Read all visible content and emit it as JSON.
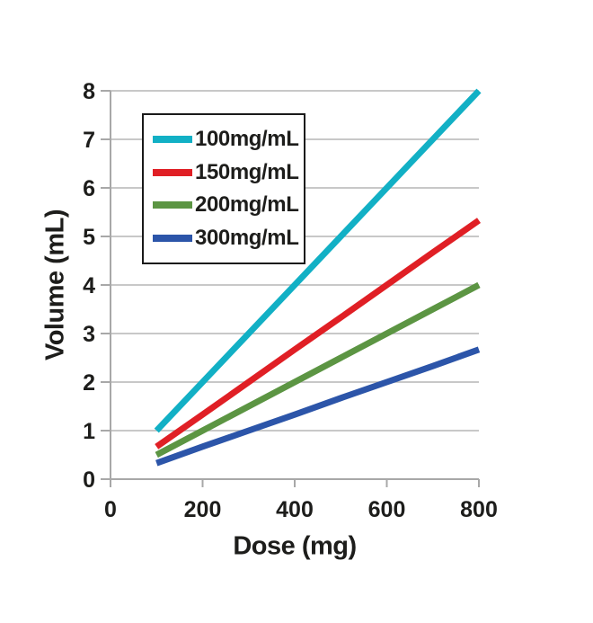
{
  "chart_data": {
    "type": "line",
    "title": "",
    "xlabel": "Dose (mg)",
    "ylabel": "Volume (mL)",
    "x": [
      100,
      200,
      300,
      400,
      500,
      600,
      700,
      800
    ],
    "xlim": [
      0,
      800
    ],
    "ylim": [
      0,
      8
    ],
    "x_ticks": [
      0,
      200,
      400,
      600,
      800
    ],
    "y_ticks": [
      0,
      1,
      2,
      3,
      4,
      5,
      6,
      7,
      8
    ],
    "grid": "horizontal",
    "legend_position": "upper-left-inside",
    "series": [
      {
        "name": "100mg/mL",
        "color": "#12b0c5",
        "values": [
          1.0,
          2.0,
          3.0,
          4.0,
          5.0,
          6.0,
          7.0,
          8.0
        ]
      },
      {
        "name": "150mg/mL",
        "color": "#e01f25",
        "values": [
          0.67,
          1.33,
          2.0,
          2.67,
          3.33,
          4.0,
          4.67,
          5.33
        ]
      },
      {
        "name": "200mg/mL",
        "color": "#5c9543",
        "values": [
          0.5,
          1.0,
          1.5,
          2.0,
          2.5,
          3.0,
          3.5,
          4.0
        ]
      },
      {
        "name": "300mg/mL",
        "color": "#2c55a9",
        "values": [
          0.33,
          0.67,
          1.0,
          1.33,
          1.67,
          2.0,
          2.33,
          2.67
        ]
      }
    ]
  },
  "style": {
    "background": "#ffffff",
    "grid_color": "#b5b5b5",
    "axis_color": "#a8a8a8",
    "text_color": "#1d1d1b",
    "legend_border_color": "#1a1a1a"
  }
}
